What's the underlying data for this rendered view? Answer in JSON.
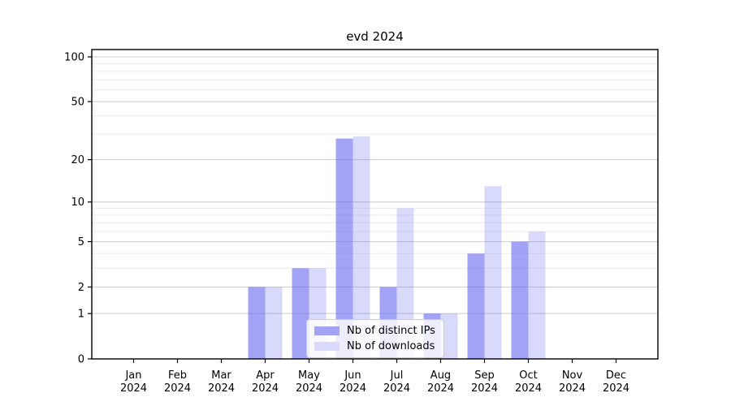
{
  "chart_data": {
    "type": "bar",
    "title": "evd 2024",
    "categories": [
      "Jan",
      "Feb",
      "Mar",
      "Apr",
      "May",
      "Jun",
      "Jul",
      "Aug",
      "Sep",
      "Oct",
      "Nov",
      "Dec"
    ],
    "x_tick_year": "2024",
    "series": [
      {
        "name": "Nb of distinct IPs",
        "values": [
          0,
          0,
          0,
          2,
          3,
          28,
          2,
          1,
          4,
          5,
          0,
          0
        ],
        "bar_color": "rgba(102,102,240,0.60)",
        "swatch_hex": "#a3a3f6"
      },
      {
        "name": "Nb of downloads",
        "values": [
          0,
          0,
          0,
          2,
          3,
          29,
          9,
          1,
          13,
          6,
          0,
          0
        ],
        "bar_color": "rgba(102,102,240,0.25)",
        "swatch_hex": "#d9d9fb"
      }
    ],
    "y_scale": "log1p",
    "y_ticks": [
      0,
      1,
      2,
      5,
      10,
      20,
      50,
      100
    ],
    "y_minor_gridlines": [
      3,
      4,
      6,
      7,
      8,
      9,
      30,
      40,
      60,
      70,
      80,
      90
    ],
    "ylim": [
      0,
      112
    ],
    "xlabel": "",
    "ylabel": "",
    "grid": "on",
    "legend_position": "lower center",
    "colors": {
      "major_grid": "#cccccc",
      "minor_grid": "#ebebeb",
      "axis": "#000000",
      "tick_label": "#000000",
      "background": "#ffffff"
    }
  }
}
